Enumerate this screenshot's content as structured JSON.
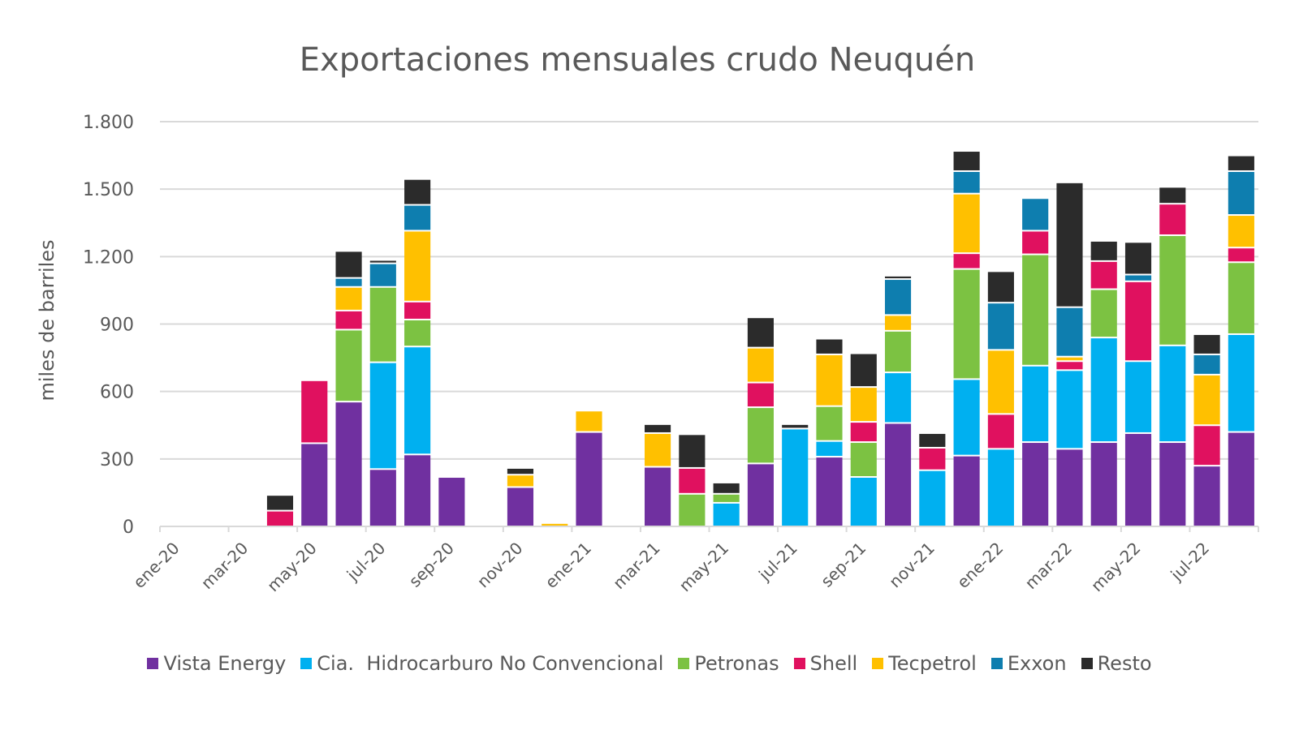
{
  "chart_data": {
    "type": "bar",
    "stacked": true,
    "title": "Exportaciones mensuales crudo Neuquén",
    "xlabel": "",
    "ylabel": "miles de barriles",
    "ylim": [
      0,
      1800
    ],
    "yticks": [
      0,
      300,
      600,
      900,
      1200,
      1500,
      1800
    ],
    "ytick_labels": [
      "0",
      "300",
      "600",
      "900",
      "1.200",
      "1.500",
      "1.800"
    ],
    "grid": true,
    "legend_position": "bottom",
    "categories": [
      "ene-20",
      "feb-20",
      "mar-20",
      "abr-20",
      "may-20",
      "jun-20",
      "jul-20",
      "ago-20",
      "sep-20",
      "oct-20",
      "nov-20",
      "dic-20",
      "ene-21",
      "feb-21",
      "mar-21",
      "abr-21",
      "may-21",
      "jun-21",
      "jul-21",
      "ago-21",
      "sep-21",
      "oct-21",
      "nov-21",
      "dic-21",
      "ene-22",
      "feb-22",
      "mar-22",
      "abr-22",
      "may-22",
      "jun-22",
      "jul-22",
      "ago-22"
    ],
    "xtick_labels": [
      "ene-20",
      "mar-20",
      "may-20",
      "jul-20",
      "sep-20",
      "nov-20",
      "ene-21",
      "mar-21",
      "may-21",
      "jul-21",
      "sep-21",
      "nov-21",
      "ene-22",
      "mar-22",
      "may-22",
      "jul-22"
    ],
    "series": [
      {
        "name": "Vista Energy",
        "color": "#7030a0",
        "values": [
          0,
          0,
          0,
          0,
          370,
          555,
          255,
          320,
          220,
          0,
          175,
          0,
          420,
          0,
          265,
          0,
          0,
          280,
          0,
          310,
          0,
          460,
          0,
          315,
          0,
          375,
          345,
          375,
          415,
          375,
          270,
          420
        ]
      },
      {
        "name": "Cia.  Hidrocarburo No Convencional",
        "color": "#00b0f0",
        "values": [
          0,
          0,
          0,
          0,
          0,
          0,
          475,
          480,
          0,
          0,
          0,
          0,
          0,
          0,
          0,
          0,
          105,
          0,
          435,
          70,
          220,
          225,
          250,
          340,
          345,
          340,
          350,
          465,
          320,
          430,
          0,
          435
        ]
      },
      {
        "name": "Petronas",
        "color": "#7cc242",
        "values": [
          0,
          0,
          0,
          0,
          0,
          320,
          335,
          120,
          0,
          0,
          0,
          0,
          0,
          0,
          0,
          145,
          40,
          250,
          0,
          155,
          155,
          185,
          0,
          490,
          0,
          495,
          0,
          215,
          0,
          490,
          0,
          320
        ]
      },
      {
        "name": "Shell",
        "color": "#e0115f",
        "values": [
          0,
          0,
          0,
          70,
          280,
          85,
          0,
          80,
          0,
          0,
          0,
          0,
          0,
          0,
          0,
          115,
          0,
          110,
          0,
          0,
          90,
          0,
          100,
          70,
          155,
          105,
          40,
          125,
          355,
          140,
          180,
          65
        ]
      },
      {
        "name": "Tecpetrol",
        "color": "#ffc000",
        "values": [
          0,
          0,
          0,
          0,
          0,
          105,
          0,
          315,
          0,
          0,
          55,
          15,
          95,
          0,
          150,
          0,
          0,
          155,
          0,
          230,
          155,
          70,
          0,
          265,
          285,
          0,
          20,
          0,
          0,
          0,
          225,
          145
        ]
      },
      {
        "name": "Exxon",
        "color": "#0e7eaf",
        "values": [
          0,
          0,
          0,
          0,
          0,
          40,
          105,
          115,
          0,
          0,
          0,
          0,
          0,
          0,
          0,
          0,
          0,
          0,
          0,
          0,
          0,
          160,
          0,
          100,
          210,
          145,
          220,
          0,
          30,
          0,
          90,
          195
        ]
      },
      {
        "name": "Resto",
        "color": "#2b2b2b",
        "values": [
          0,
          0,
          0,
          70,
          0,
          120,
          15,
          115,
          0,
          0,
          30,
          0,
          0,
          0,
          40,
          150,
          50,
          135,
          20,
          70,
          150,
          15,
          65,
          90,
          140,
          0,
          555,
          90,
          145,
          75,
          90,
          70
        ]
      }
    ]
  }
}
